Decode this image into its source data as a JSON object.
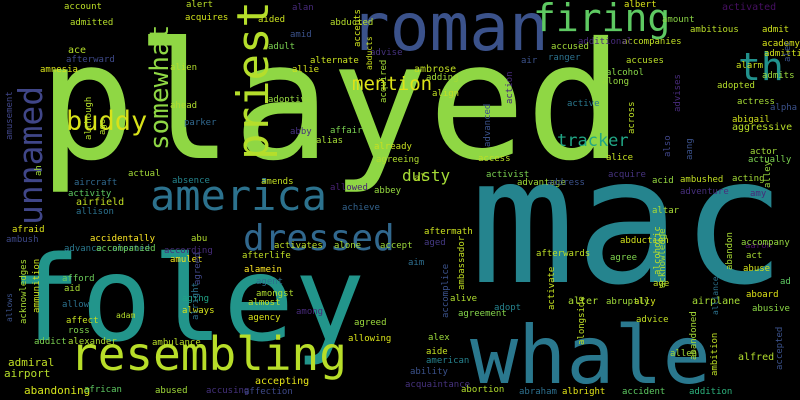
{
  "words": [
    {
      "text": "played",
      "color": "#8fd744",
      "dir": "h"
    },
    {
      "text": "foley",
      "color": "#22958b",
      "dir": "h"
    },
    {
      "text": "mac",
      "color": "#25848e",
      "dir": "h"
    },
    {
      "text": "whale",
      "color": "#2a788e",
      "dir": "h"
    },
    {
      "text": "roman",
      "color": "#3b528b",
      "dir": "h"
    },
    {
      "text": "america",
      "color": "#2c728e",
      "dir": "h"
    },
    {
      "text": "resembling",
      "color": "#b8de29",
      "dir": "h"
    },
    {
      "text": "dressed",
      "color": "#31688e",
      "dir": "h"
    },
    {
      "text": "firing",
      "color": "#5ec962",
      "dir": "h"
    },
    {
      "text": "unnamed",
      "color": "#404688",
      "dir": "v"
    },
    {
      "text": "priest",
      "color": "#b5de2b",
      "dir": "v"
    },
    {
      "text": "somewhat",
      "color": "#8fd744",
      "dir": "v"
    },
    {
      "text": "th",
      "color": "#21918c",
      "dir": "h"
    },
    {
      "text": "buddy",
      "color": "#d8e219",
      "dir": "h"
    },
    {
      "text": "mention",
      "color": "#dde318",
      "dir": "h"
    },
    {
      "text": "tracker",
      "color": "#21a685",
      "dir": "h"
    },
    {
      "text": "dusty",
      "color": "#a5db36",
      "dir": "h"
    },
    {
      "text": "admiral",
      "color": "#c0df25",
      "dir": "h"
    },
    {
      "text": "airport",
      "color": "#b5de2b",
      "dir": "h"
    },
    {
      "text": "abandoning",
      "color": "#d2e21b",
      "dir": "h"
    },
    {
      "text": "african",
      "color": "#5ec962",
      "dir": "h"
    },
    {
      "text": "abused",
      "color": "#a0da39",
      "dir": "h"
    },
    {
      "text": "accusing",
      "color": "#46327e",
      "dir": "h"
    },
    {
      "text": "affection",
      "color": "#3e4989",
      "dir": "h"
    },
    {
      "text": "accepting",
      "color": "#e5e419",
      "dir": "h"
    },
    {
      "text": "ambulance",
      "color": "#b8de29",
      "dir": "h"
    },
    {
      "text": "alexander",
      "color": "#a8db34",
      "dir": "h"
    },
    {
      "text": "addict",
      "color": "#7ad151",
      "dir": "h"
    },
    {
      "text": "ross",
      "color": "#7fd34e",
      "dir": "h"
    },
    {
      "text": "affect",
      "color": "#c5e021",
      "dir": "h"
    },
    {
      "text": "allow",
      "color": "#2c728e",
      "dir": "h"
    },
    {
      "text": "aid",
      "color": "#a8db34",
      "dir": "h"
    },
    {
      "text": "afford",
      "color": "#6ccd5a",
      "dir": "h"
    },
    {
      "text": "advance",
      "color": "#2a788e",
      "dir": "h"
    },
    {
      "text": "alerted",
      "color": "#31688e",
      "dir": "h"
    },
    {
      "text": "accidentally",
      "color": "#fde725",
      "dir": "h"
    },
    {
      "text": "accompanied",
      "color": "#6ece58",
      "dir": "h"
    },
    {
      "text": "afraid",
      "color": "#dde318",
      "dir": "h"
    },
    {
      "text": "ambush",
      "color": "#3e4989",
      "dir": "h"
    },
    {
      "text": "allison",
      "color": "#2c728e",
      "dir": "h"
    },
    {
      "text": "airfield",
      "color": "#c2df23",
      "dir": "h"
    },
    {
      "text": "activity",
      "color": "#5ec962",
      "dir": "h"
    },
    {
      "text": "aircraft",
      "color": "#30698e",
      "dir": "h"
    },
    {
      "text": "actual",
      "color": "#a2da37",
      "dir": "h"
    },
    {
      "text": "absence",
      "color": "#25858e",
      "dir": "h"
    },
    {
      "text": "amends",
      "color": "#c2df23",
      "dir": "h"
    },
    {
      "text": "abu",
      "color": "#b2dd2d",
      "dir": "h"
    },
    {
      "text": "amulet",
      "color": "#f1e51d",
      "dir": "h"
    },
    {
      "text": "according",
      "color": "#472c7a",
      "dir": "h"
    },
    {
      "text": "adam",
      "color": "#b5de2b",
      "dir": "h"
    },
    {
      "text": "aging",
      "color": "#20a386",
      "dir": "h"
    },
    {
      "text": "always",
      "color": "#d5e21a",
      "dir": "h"
    },
    {
      "text": "alamein",
      "color": "#fde725",
      "dir": "h"
    },
    {
      "text": "afterlife",
      "color": "#c0df25",
      "dir": "h"
    },
    {
      "text": "activates",
      "color": "#bddf26",
      "dir": "h"
    },
    {
      "text": "agent",
      "color": "#2e6f8e",
      "dir": "h"
    },
    {
      "text": "amongst",
      "color": "#b0dd2f",
      "dir": "h"
    },
    {
      "text": "almost",
      "color": "#bddf26",
      "dir": "h"
    },
    {
      "text": "agency",
      "color": "#d8e219",
      "dir": "h"
    },
    {
      "text": "among",
      "color": "#472a7a",
      "dir": "h"
    },
    {
      "text": "agreed",
      "color": "#9bd93c",
      "dir": "h"
    },
    {
      "text": "allowing",
      "color": "#dae319",
      "dir": "h"
    },
    {
      "text": "alone",
      "color": "#a5db36",
      "dir": "h"
    },
    {
      "text": "accept",
      "color": "#9dd93b",
      "dir": "h"
    },
    {
      "text": "achieve",
      "color": "#33638d",
      "dir": "h"
    },
    {
      "text": "abbey",
      "color": "#95d840",
      "dir": "h"
    },
    {
      "text": "allowed",
      "color": "#482374",
      "dir": "h"
    },
    {
      "text": "alias",
      "color": "#a5db36",
      "dir": "h"
    },
    {
      "text": "affair",
      "color": "#7ad151",
      "dir": "h"
    },
    {
      "text": "already",
      "color": "#c8e020",
      "dir": "h"
    },
    {
      "text": "agreeing",
      "color": "#b0dd2f",
      "dir": "h"
    },
    {
      "text": "al",
      "color": "#b5de2b",
      "dir": "h"
    },
    {
      "text": "aim",
      "color": "#2e6e8e",
      "dir": "h"
    },
    {
      "text": "aged",
      "color": "#443983",
      "dir": "h"
    },
    {
      "text": "aftermath",
      "color": "#cae11f",
      "dir": "h"
    },
    {
      "text": "afterwards",
      "color": "#bddf26",
      "dir": "h"
    },
    {
      "text": "alive",
      "color": "#b0dd2f",
      "dir": "h"
    },
    {
      "text": "agreement",
      "color": "#84d44b",
      "dir": "h"
    },
    {
      "text": "adopt",
      "color": "#26828e",
      "dir": "h"
    },
    {
      "text": "alex",
      "color": "#9bd93c",
      "dir": "h"
    },
    {
      "text": "aide",
      "color": "#c5e021",
      "dir": "h"
    },
    {
      "text": "american",
      "color": "#26828e",
      "dir": "h"
    },
    {
      "text": "ability",
      "color": "#3b528b",
      "dir": "h"
    },
    {
      "text": "acquaintance",
      "color": "#46327e",
      "dir": "h"
    },
    {
      "text": "abortion",
      "color": "#b2dd2d",
      "dir": "h"
    },
    {
      "text": "abraham",
      "color": "#2d708e",
      "dir": "h"
    },
    {
      "text": "albright",
      "color": "#e2e418",
      "dir": "h"
    },
    {
      "text": "accident",
      "color": "#5ec962",
      "dir": "h"
    },
    {
      "text": "addition",
      "color": "#2db27d",
      "dir": "h"
    },
    {
      "text": "alfred",
      "color": "#b2dd2d",
      "dir": "h"
    },
    {
      "text": "allen",
      "color": "#a0da39",
      "dir": "h"
    },
    {
      "text": "advice",
      "color": "#c2df23",
      "dir": "h"
    },
    {
      "text": "ally",
      "color": "#d2e21b",
      "dir": "h"
    },
    {
      "text": "abruptly",
      "color": "#9fda3a",
      "dir": "h"
    },
    {
      "text": "alter",
      "color": "#a8db34",
      "dir": "h"
    },
    {
      "text": "airplane",
      "color": "#a5db36",
      "dir": "h"
    },
    {
      "text": "abusive",
      "color": "#8bd646",
      "dir": "h"
    },
    {
      "text": "aboard",
      "color": "#dde318",
      "dir": "h"
    },
    {
      "text": "abuse",
      "color": "#d2e21b",
      "dir": "h"
    },
    {
      "text": "act",
      "color": "#a8db34",
      "dir": "h"
    },
    {
      "text": "agree",
      "color": "#7fd34e",
      "dir": "h"
    },
    {
      "text": "age",
      "color": "#c2df23",
      "dir": "h"
    },
    {
      "text": "aaron",
      "color": "#471164",
      "dir": "h"
    },
    {
      "text": "ad",
      "color": "#5ec962",
      "dir": "h"
    },
    {
      "text": "accompany",
      "color": "#95d840",
      "dir": "h"
    },
    {
      "text": "amy",
      "color": "#482979",
      "dir": "h"
    },
    {
      "text": "acting",
      "color": "#a2da37",
      "dir": "h"
    },
    {
      "text": "ambushed",
      "color": "#c2df23",
      "dir": "h"
    },
    {
      "text": "acid",
      "color": "#95d840",
      "dir": "h"
    },
    {
      "text": "acquire",
      "color": "#46337f",
      "dir": "h"
    },
    {
      "text": "adventure",
      "color": "#472f7d",
      "dir": "h"
    },
    {
      "text": "altar",
      "color": "#a8db34",
      "dir": "h"
    },
    {
      "text": "abduction",
      "color": "#d0e11c",
      "dir": "h"
    },
    {
      "text": "actor",
      "color": "#a0da39",
      "dir": "h"
    },
    {
      "text": "actually",
      "color": "#7ad151",
      "dir": "h"
    },
    {
      "text": "aggressive",
      "color": "#b8de29",
      "dir": "h"
    },
    {
      "text": "abigail",
      "color": "#d0e11c",
      "dir": "h"
    },
    {
      "text": "actress",
      "color": "#a5db36",
      "dir": "h"
    },
    {
      "text": "adopted",
      "color": "#b5de2b",
      "dir": "h"
    },
    {
      "text": "alarm",
      "color": "#c8e020",
      "dir": "h"
    },
    {
      "text": "admits",
      "color": "#9bd93c",
      "dir": "h"
    },
    {
      "text": "admitting",
      "color": "#d0e11c",
      "dir": "h"
    },
    {
      "text": "admit",
      "color": "#cde11d",
      "dir": "h"
    },
    {
      "text": "academy",
      "color": "#d5e21a",
      "dir": "h"
    },
    {
      "text": "activated",
      "color": "#471063",
      "dir": "h"
    },
    {
      "text": "ambitious",
      "color": "#bade28",
      "dir": "h"
    },
    {
      "text": "amount",
      "color": "#8bd646",
      "dir": "h"
    },
    {
      "text": "albert",
      "color": "#d8e219",
      "dir": "h"
    },
    {
      "text": "accompanies",
      "color": "#c0df25",
      "dir": "h"
    },
    {
      "text": "additional",
      "color": "#472a7a",
      "dir": "h"
    },
    {
      "text": "accuses",
      "color": "#bade28",
      "dir": "h"
    },
    {
      "text": "accused",
      "color": "#a2da37",
      "dir": "h"
    },
    {
      "text": "ranger",
      "color": "#2c728e",
      "dir": "h"
    },
    {
      "text": "alcohol",
      "color": "#86d549",
      "dir": "h"
    },
    {
      "text": "along",
      "color": "#95d840",
      "dir": "h"
    },
    {
      "text": "air",
      "color": "#3b528b",
      "dir": "h"
    },
    {
      "text": "adding",
      "color": "#a5db36",
      "dir": "h"
    },
    {
      "text": "align",
      "color": "#c0df25",
      "dir": "h"
    },
    {
      "text": "active",
      "color": "#2a788e",
      "dir": "h"
    },
    {
      "text": "access",
      "color": "#bddf26",
      "dir": "h"
    },
    {
      "text": "alice",
      "color": "#c5e021",
      "dir": "h"
    },
    {
      "text": "activist",
      "color": "#7ad151",
      "dir": "h"
    },
    {
      "text": "advantage",
      "color": "#a0da39",
      "dir": "h"
    },
    {
      "text": "address",
      "color": "#3b528b",
      "dir": "h"
    },
    {
      "text": "ambrose",
      "color": "#c2df23",
      "dir": "h"
    },
    {
      "text": "alternate",
      "color": "#c8e020",
      "dir": "h"
    },
    {
      "text": "allie",
      "color": "#d2e21b",
      "dir": "h"
    },
    {
      "text": "adult",
      "color": "#7ad151",
      "dir": "h"
    },
    {
      "text": "amid",
      "color": "#3b528b",
      "dir": "h"
    },
    {
      "text": "aided",
      "color": "#cae11f",
      "dir": "h"
    },
    {
      "text": "alan",
      "color": "#472a7a",
      "dir": "h"
    },
    {
      "text": "abducted",
      "color": "#b5de2b",
      "dir": "h"
    },
    {
      "text": "alert",
      "color": "#bade28",
      "dir": "h"
    },
    {
      "text": "acquires",
      "color": "#d0e11c",
      "dir": "h"
    },
    {
      "text": "alien",
      "color": "#b2dd2d",
      "dir": "h"
    },
    {
      "text": "afterward",
      "color": "#3e4989",
      "dir": "h"
    },
    {
      "text": "admitted",
      "color": "#b5de2b",
      "dir": "h"
    },
    {
      "text": "account",
      "color": "#bddf26",
      "dir": "h"
    },
    {
      "text": "ace",
      "color": "#b5de2b",
      "dir": "h"
    },
    {
      "text": "amnesia",
      "color": "#d8e219",
      "dir": "h"
    },
    {
      "text": "ahead",
      "color": "#b0dd2f",
      "dir": "h"
    },
    {
      "text": "adoptive",
      "color": "#95d840",
      "dir": "h"
    },
    {
      "text": "abby",
      "color": "#46327e",
      "dir": "h"
    },
    {
      "text": "parker",
      "color": "#31688e",
      "dir": "h"
    },
    {
      "text": "advise",
      "color": "#46327e",
      "dir": "h"
    },
    {
      "text": "although",
      "color": "#b5de2b",
      "dir": "v"
    },
    {
      "text": "ago",
      "color": "#b5de2b",
      "dir": "v"
    },
    {
      "text": "amusement",
      "color": "#404688",
      "dir": "v"
    },
    {
      "text": "ah",
      "color": "#a0da39",
      "dir": "v"
    },
    {
      "text": "allows",
      "color": "#3b528b",
      "dir": "v"
    },
    {
      "text": "acknowledges",
      "color": "#a8db34",
      "dir": "v"
    },
    {
      "text": "ammunition",
      "color": "#cae11f",
      "dir": "v"
    },
    {
      "text": "alright",
      "color": "#2c728e",
      "dir": "v"
    },
    {
      "text": "agreed",
      "color": "#404688",
      "dir": "v"
    },
    {
      "text": "ambassador",
      "color": "#c2df23",
      "dir": "v"
    },
    {
      "text": "accomplice",
      "color": "#3b528b",
      "dir": "v"
    },
    {
      "text": "activate",
      "color": "#c5e021",
      "dir": "v"
    },
    {
      "text": "alongside",
      "color": "#bddf26",
      "dir": "v"
    },
    {
      "text": "abandoned",
      "color": "#a5db36",
      "dir": "v"
    },
    {
      "text": "ambition",
      "color": "#bddf26",
      "dir": "v"
    },
    {
      "text": "accepted",
      "color": "#3b528b",
      "dir": "v"
    },
    {
      "text": "alcoholic",
      "color": "#bddf26",
      "dir": "v"
    },
    {
      "text": "acknowledge",
      "color": "#a8db34",
      "dir": "v"
    },
    {
      "text": "abandon",
      "color": "#a8db34",
      "dir": "v"
    },
    {
      "text": "alliance",
      "color": "#2c728e",
      "dir": "v"
    },
    {
      "text": "alpha",
      "color": "#3b528b",
      "dir": "h"
    },
    {
      "text": "alley",
      "color": "#95d840",
      "dir": "v"
    },
    {
      "text": "aang",
      "color": "#3b528b",
      "dir": "v"
    },
    {
      "text": "also",
      "color": "#404688",
      "dir": "v"
    },
    {
      "text": "across",
      "color": "#bddf26",
      "dir": "v"
    },
    {
      "text": "advanced",
      "color": "#3b528b",
      "dir": "v"
    },
    {
      "text": "action",
      "color": "#472a7a",
      "dir": "v"
    },
    {
      "text": "acquired",
      "color": "#a2da37",
      "dir": "v"
    },
    {
      "text": "accepts",
      "color": "#cde11d",
      "dir": "v"
    },
    {
      "text": "abducts",
      "color": "#cae11f",
      "dir": "v"
    },
    {
      "text": "advises",
      "color": "#472a7a",
      "dir": "v"
    },
    {
      "text": "alec",
      "color": "#3b528b",
      "dir": "v"
    },
    {
      "text": "alison",
      "color": "#bddf26",
      "dir": "v"
    }
  ]
}
